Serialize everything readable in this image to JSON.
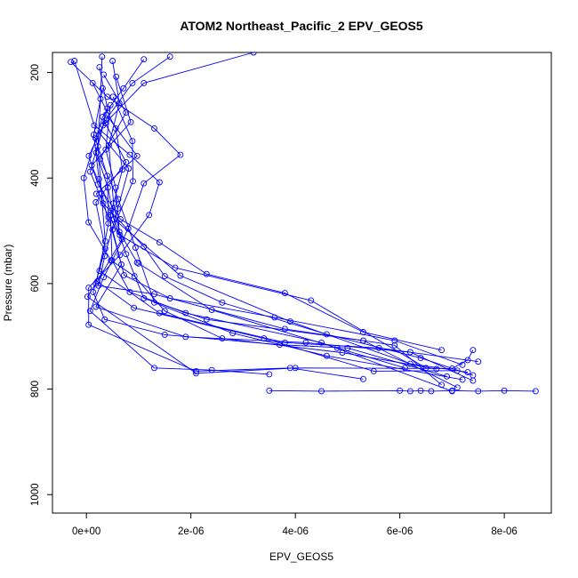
{
  "chart_data": {
    "type": "line",
    "title": "ATOM2 Northeast_Pacific_2 EPV_GEOS5",
    "xlabel": "EPV_GEOS5",
    "ylabel": "Pressure (mbar)",
    "xlim": [
      -6.5e-07,
      8.9e-06
    ],
    "ylim": [
      1035,
      162
    ],
    "y_reversed": true,
    "x_ticks": [
      0,
      2e-06,
      4e-06,
      6e-06,
      8e-06
    ],
    "x_tick_labels": [
      "0e+00",
      "2e-06",
      "4e-06",
      "6e-06",
      "8e-06"
    ],
    "y_ticks": [
      200,
      400,
      600,
      800,
      1000
    ],
    "y_tick_labels": [
      "200",
      "400",
      "600",
      "800",
      "1000"
    ],
    "marker": "open-circle",
    "series_color": "#0000ff",
    "grid": false,
    "series": [
      {
        "points": [
          [
            3e-07,
            170
          ],
          [
            2.7e-07,
            250
          ],
          [
            2.2e-07,
            340
          ],
          [
            2.9e-07,
            430
          ],
          [
            3.6e-07,
            520
          ],
          [
            1.8e-07,
            600
          ],
          [
            2e-08,
            625
          ],
          [
            2.1e-06,
            770
          ],
          [
            4e-06,
            760
          ],
          [
            7e-06,
            761
          ],
          [
            7.3e-06,
            745
          ],
          [
            7.4e-06,
            726
          ]
        ]
      },
      {
        "points": [
          [
            5e-07,
            178
          ],
          [
            6.3e-07,
            258
          ],
          [
            4.3e-07,
            338
          ],
          [
            5.2e-07,
            448
          ],
          [
            6.4e-07,
            508
          ],
          [
            1.7e-06,
            570
          ],
          [
            4.3e-06,
            632
          ],
          [
            6.5e-06,
            760
          ]
        ]
      },
      {
        "points": [
          [
            2.5e-07,
            190
          ],
          [
            4e-07,
            268
          ],
          [
            1.9e-07,
            352
          ],
          [
            4.1e-07,
            418
          ],
          [
            5.3e-07,
            478
          ],
          [
            1.8e-06,
            585
          ],
          [
            3.9e-06,
            672
          ],
          [
            6.2e-06,
            752
          ],
          [
            7.3e-06,
            768
          ]
        ]
      },
      {
        "points": [
          [
            3.3e-07,
            204
          ],
          [
            7.6e-07,
            276
          ],
          [
            2.6e-07,
            364
          ],
          [
            6.1e-07,
            440
          ],
          [
            9.4e-07,
            532
          ],
          [
            1.3e-06,
            636
          ],
          [
            2.8e-06,
            694
          ],
          [
            4.6e-06,
            737
          ],
          [
            7.2e-06,
            782
          ]
        ]
      },
      {
        "points": [
          [
            5.7e-07,
            208
          ],
          [
            8.5e-07,
            294
          ],
          [
            1e-07,
            376
          ],
          [
            4.7e-07,
            462
          ],
          [
            7.6e-07,
            544
          ],
          [
            1.1e-06,
            628
          ],
          [
            2.3e-06,
            668
          ],
          [
            5.3e-06,
            708
          ],
          [
            7.1e-06,
            797
          ]
        ]
      },
      {
        "points": [
          [
            1.2e-07,
            220
          ],
          [
            5.6e-07,
            306
          ],
          [
            6.9e-07,
            384
          ],
          [
            4.6e-07,
            470
          ],
          [
            4.9e-07,
            556
          ],
          [
            8.3e-07,
            616
          ],
          [
            1.9e-06,
            656
          ],
          [
            4.5e-06,
            712
          ],
          [
            7e-06,
            804
          ]
        ]
      },
      {
        "points": [
          [
            3.1e-07,
            230
          ],
          [
            1.4e-07,
            318
          ],
          [
            2.4e-07,
            402
          ],
          [
            4.2e-07,
            486
          ],
          [
            2.5e-07,
            576
          ],
          [
            1.4e-06,
            656
          ],
          [
            3.8e-06,
            712
          ],
          [
            5.6e-06,
            722
          ],
          [
            7.5e-06,
            748
          ]
        ]
      },
      {
        "points": [
          [
            5.1e-07,
            246
          ],
          [
            8.8e-07,
            330
          ],
          [
            8.9e-07,
            406
          ],
          [
            5e-07,
            498
          ],
          [
            7.2e-07,
            584
          ],
          [
            1.6e-06,
            628
          ],
          [
            3.6e-06,
            664
          ],
          [
            5.9e-06,
            708
          ],
          [
            7.2e-06,
            754
          ]
        ]
      },
      {
        "points": [
          [
            4.6e-07,
            262
          ],
          [
            3.7e-07,
            346
          ],
          [
            5.6e-07,
            418
          ],
          [
            6.3e-07,
            502
          ],
          [
            9.7e-07,
            560
          ],
          [
            1e-06,
            562
          ],
          [
            2.4e-06,
            650
          ],
          [
            4.8e-06,
            722
          ],
          [
            6.1e-06,
            760
          ]
        ]
      },
      {
        "points": [
          [
            3.8e-07,
            280
          ],
          [
            9.7e-07,
            358
          ],
          [
            1.9e-07,
            430
          ],
          [
            6.8e-07,
            516
          ],
          [
            2.1e-07,
            596
          ],
          [
            9.1e-07,
            646
          ],
          [
            3.4e-06,
            704
          ],
          [
            5.5e-06,
            766
          ],
          [
            7.1e-06,
            765
          ]
        ]
      },
      {
        "points": [
          [
            3.6e-07,
            296
          ],
          [
            7.6e-07,
            370
          ],
          [
            1.8e-07,
            446
          ],
          [
            3.6e-07,
            534
          ],
          [
            1.3e-07,
            616
          ],
          [
            3.5e-07,
            668
          ],
          [
            1.5e-06,
            697
          ],
          [
            3.7e-06,
            716
          ],
          [
            5e-06,
            722
          ],
          [
            6.9e-06,
            776
          ]
        ]
      },
      {
        "points": [
          [
            2.1e-07,
            310
          ],
          [
            8.1e-07,
            382
          ],
          [
            6e-07,
            458
          ],
          [
            3.5e-07,
            548
          ],
          [
            2.3e-07,
            604
          ],
          [
            1.3e-06,
            620
          ],
          [
            3.8e-06,
            686
          ],
          [
            5.9e-06,
            717
          ],
          [
            6.8e-06,
            792
          ]
        ]
      },
      {
        "points": [
          [
            1.7e-07,
            324
          ],
          [
            4e-07,
            396
          ],
          [
            4.2e-07,
            474
          ],
          [
            6.7e-07,
            564
          ],
          [
            1.8e-07,
            644
          ],
          [
            1.9e-06,
            701
          ],
          [
            4.2e-06,
            712
          ],
          [
            6.2e-06,
            730
          ],
          [
            7.4e-06,
            784
          ]
        ]
      },
      {
        "points": [
          [
            -3e-07,
            180
          ],
          [
            4e-07,
            246
          ],
          [
            1.3e-06,
            306
          ],
          [
            1.8e-06,
            356
          ],
          [
            1.1e-06,
            410
          ],
          [
            8e-07,
            496
          ],
          [
            3.3e-07,
            588
          ],
          [
            7e-08,
            652
          ],
          [
            1.3e-06,
            760
          ],
          [
            2.4e-06,
            764
          ],
          [
            3.5e-06,
            772
          ]
        ]
      },
      {
        "points": [
          [
            -2.3e-07,
            178
          ],
          [
            1.5e-07,
            300
          ],
          [
            8.3e-07,
            356
          ],
          [
            1.4e-06,
            408
          ],
          [
            1.2e-06,
            470
          ],
          [
            6.4e-07,
            546
          ],
          [
            4.2e-08,
            608
          ],
          [
            4.3e-08,
            678
          ],
          [
            2.1e-06,
            766
          ],
          [
            3.9e-06,
            760
          ],
          [
            5.3e-06,
            781
          ]
        ]
      },
      {
        "points": [
          [
            1.6e-06,
            170
          ],
          [
            8.8e-07,
            220
          ],
          [
            3.7e-07,
            290
          ],
          [
            4.6e-08,
            358
          ],
          [
            2.2e-07,
            412
          ],
          [
            6.5e-07,
            478
          ],
          [
            1.4e-06,
            522
          ],
          [
            2.3e-06,
            582
          ],
          [
            3.8e-06,
            618
          ],
          [
            5.3e-06,
            692
          ],
          [
            6.8e-06,
            726
          ]
        ]
      },
      {
        "points": [
          [
            1.1e-06,
            175
          ],
          [
            7.1e-07,
            230
          ],
          [
            3.1e-07,
            284
          ],
          [
            -5e-08,
            400
          ],
          [
            4.1e-08,
            484
          ],
          [
            4.7e-07,
            556
          ],
          [
            9.2e-07,
            586
          ],
          [
            1.5e-06,
            652
          ],
          [
            2.6e-06,
            704
          ],
          [
            4.9e-06,
            731
          ],
          [
            6.7e-06,
            762
          ]
        ]
      },
      {
        "points": [
          [
            3.2e-06,
            162
          ],
          [
            1.1e-06,
            220
          ],
          [
            3.2e-07,
            300
          ],
          [
            7.3e-08,
            388
          ],
          [
            3.2e-07,
            448
          ],
          [
            1.1e-06,
            530
          ],
          [
            1.5e-06,
            586
          ],
          [
            2.6e-06,
            636
          ],
          [
            4.6e-06,
            696
          ],
          [
            6.4e-06,
            741
          ],
          [
            7.4e-06,
            774
          ]
        ]
      },
      {
        "points": [
          [
            3.5e-06,
            803
          ],
          [
            4.5e-06,
            804
          ],
          [
            6e-06,
            803
          ],
          [
            6.2e-06,
            804
          ],
          [
            6.4e-06,
            803
          ],
          [
            6.6e-06,
            804
          ],
          [
            7e-06,
            803
          ],
          [
            7.5e-06,
            804
          ],
          [
            8e-06,
            803
          ],
          [
            8.6e-06,
            804
          ]
        ]
      }
    ]
  }
}
